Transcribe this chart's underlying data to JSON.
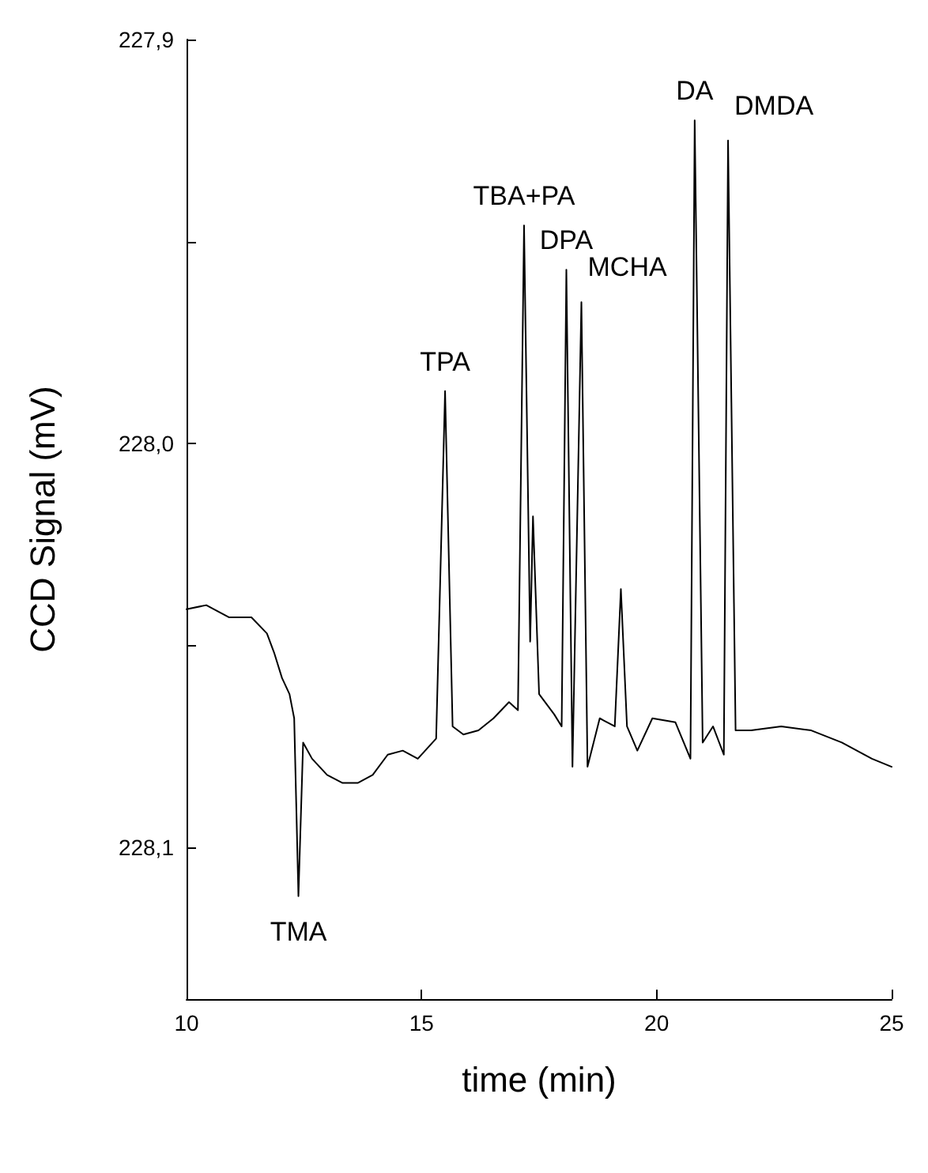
{
  "chart_data": {
    "type": "line",
    "xlabel": "time (min)",
    "ylabel": "CCD Signal (mV)",
    "xlim": [
      10,
      25
    ],
    "xticks": [
      10,
      15,
      20,
      25
    ],
    "ylim": [
      228.1375,
      227.9
    ],
    "yticks": [
      {
        "value": 227.9,
        "label": "227,9"
      },
      {
        "value": 227.95,
        "label": null
      },
      {
        "value": 228.0,
        "label": "228,0"
      },
      {
        "value": 228.05,
        "label": null
      },
      {
        "value": 228.1,
        "label": "228,1"
      }
    ],
    "grid": false,
    "marker": "none",
    "line_style": "solid",
    "series": [
      {
        "color": "#000000",
        "x": [
          10.0,
          10.42,
          10.9,
          11.38,
          11.71,
          11.87,
          12.03,
          12.19,
          12.29,
          12.38,
          12.48,
          12.67,
          12.99,
          13.32,
          13.64,
          13.96,
          14.28,
          14.6,
          14.92,
          15.31,
          15.5,
          15.66,
          15.89,
          16.21,
          16.53,
          16.86,
          17.05,
          17.18,
          17.31,
          17.37,
          17.5,
          17.82,
          17.98,
          18.08,
          18.21,
          18.4,
          18.53,
          18.79,
          19.11,
          19.24,
          19.37,
          19.59,
          19.91,
          20.4,
          20.72,
          20.81,
          20.98,
          21.2,
          21.43,
          21.52,
          21.68,
          22.01,
          22.65,
          23.29,
          23.94,
          24.58,
          25.0
        ],
        "values": [
          228.041,
          228.04,
          228.043,
          228.043,
          228.047,
          228.052,
          228.058,
          228.062,
          228.068,
          228.112,
          228.074,
          228.078,
          228.082,
          228.084,
          228.084,
          228.082,
          228.077,
          228.076,
          228.078,
          228.073,
          227.987,
          228.07,
          228.072,
          228.071,
          228.068,
          228.064,
          228.066,
          227.946,
          228.049,
          228.018,
          228.062,
          228.067,
          228.07,
          227.957,
          228.08,
          227.965,
          228.08,
          228.068,
          228.07,
          228.036,
          228.07,
          228.076,
          228.068,
          228.069,
          228.078,
          227.92,
          228.074,
          228.07,
          228.077,
          227.925,
          228.071,
          228.071,
          228.07,
          228.071,
          228.074,
          228.078,
          228.08
        ]
      }
    ],
    "annotations": [
      {
        "text": "TMA",
        "x": 12.38,
        "y": 228.112
      },
      {
        "text": "TPA",
        "x": 15.5,
        "y": 227.987
      },
      {
        "text": "TBA+PA",
        "x": 17.18,
        "y": 227.946
      },
      {
        "text": "DPA",
        "x": 18.08,
        "y": 227.957
      },
      {
        "text": "MCHA",
        "x": 18.4,
        "y": 227.965
      },
      {
        "text": "DA",
        "x": 20.81,
        "y": 227.92
      },
      {
        "text": "DMDA",
        "x": 21.52,
        "y": 227.925
      }
    ]
  }
}
